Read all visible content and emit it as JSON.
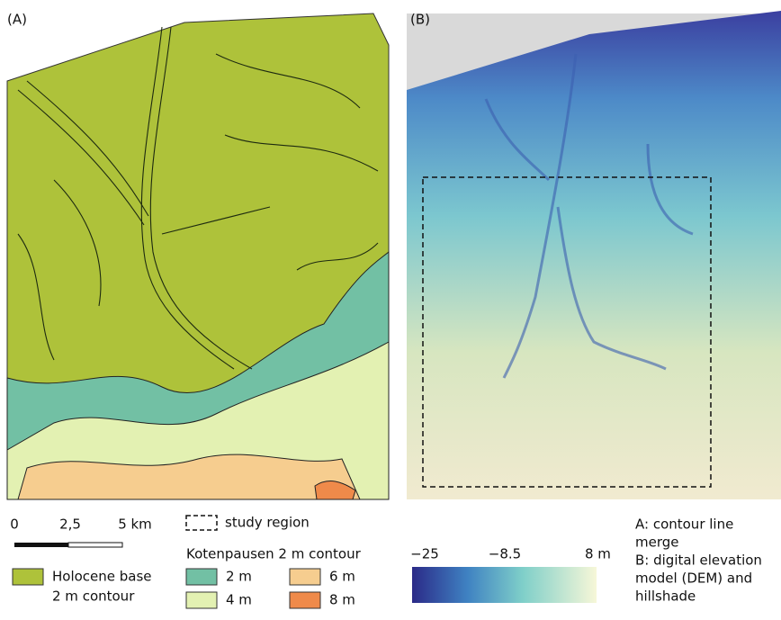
{
  "panel_a": {
    "label": "(A)"
  },
  "panel_b": {
    "label": "(B)"
  },
  "scale_bar": {
    "labels": [
      "0",
      "2,5",
      "5 km"
    ]
  },
  "study_region": "study region",
  "legend_a": {
    "holocene": [
      "Holocene base",
      "2 m contour"
    ],
    "title": "Kotenpausen 2 m contour",
    "items": [
      {
        "label": "2 m",
        "color": "#72c0a4"
      },
      {
        "label": "4 m",
        "color": "#e3f1b2"
      },
      {
        "label": "6 m",
        "color": "#f6cd8f"
      },
      {
        "label": "8 m",
        "color": "#ef8a4a"
      }
    ]
  },
  "colorbar": {
    "ticks": [
      {
        "value": -25,
        "label": "−25"
      },
      {
        "value": -8.5,
        "label": "−8.5"
      },
      {
        "value": 8,
        "label": "8 m"
      }
    ]
  },
  "caption": [
    "A: contour line",
    "merge",
    "B: digital elevation",
    "model (DEM) and",
    "hillshade"
  ]
}
